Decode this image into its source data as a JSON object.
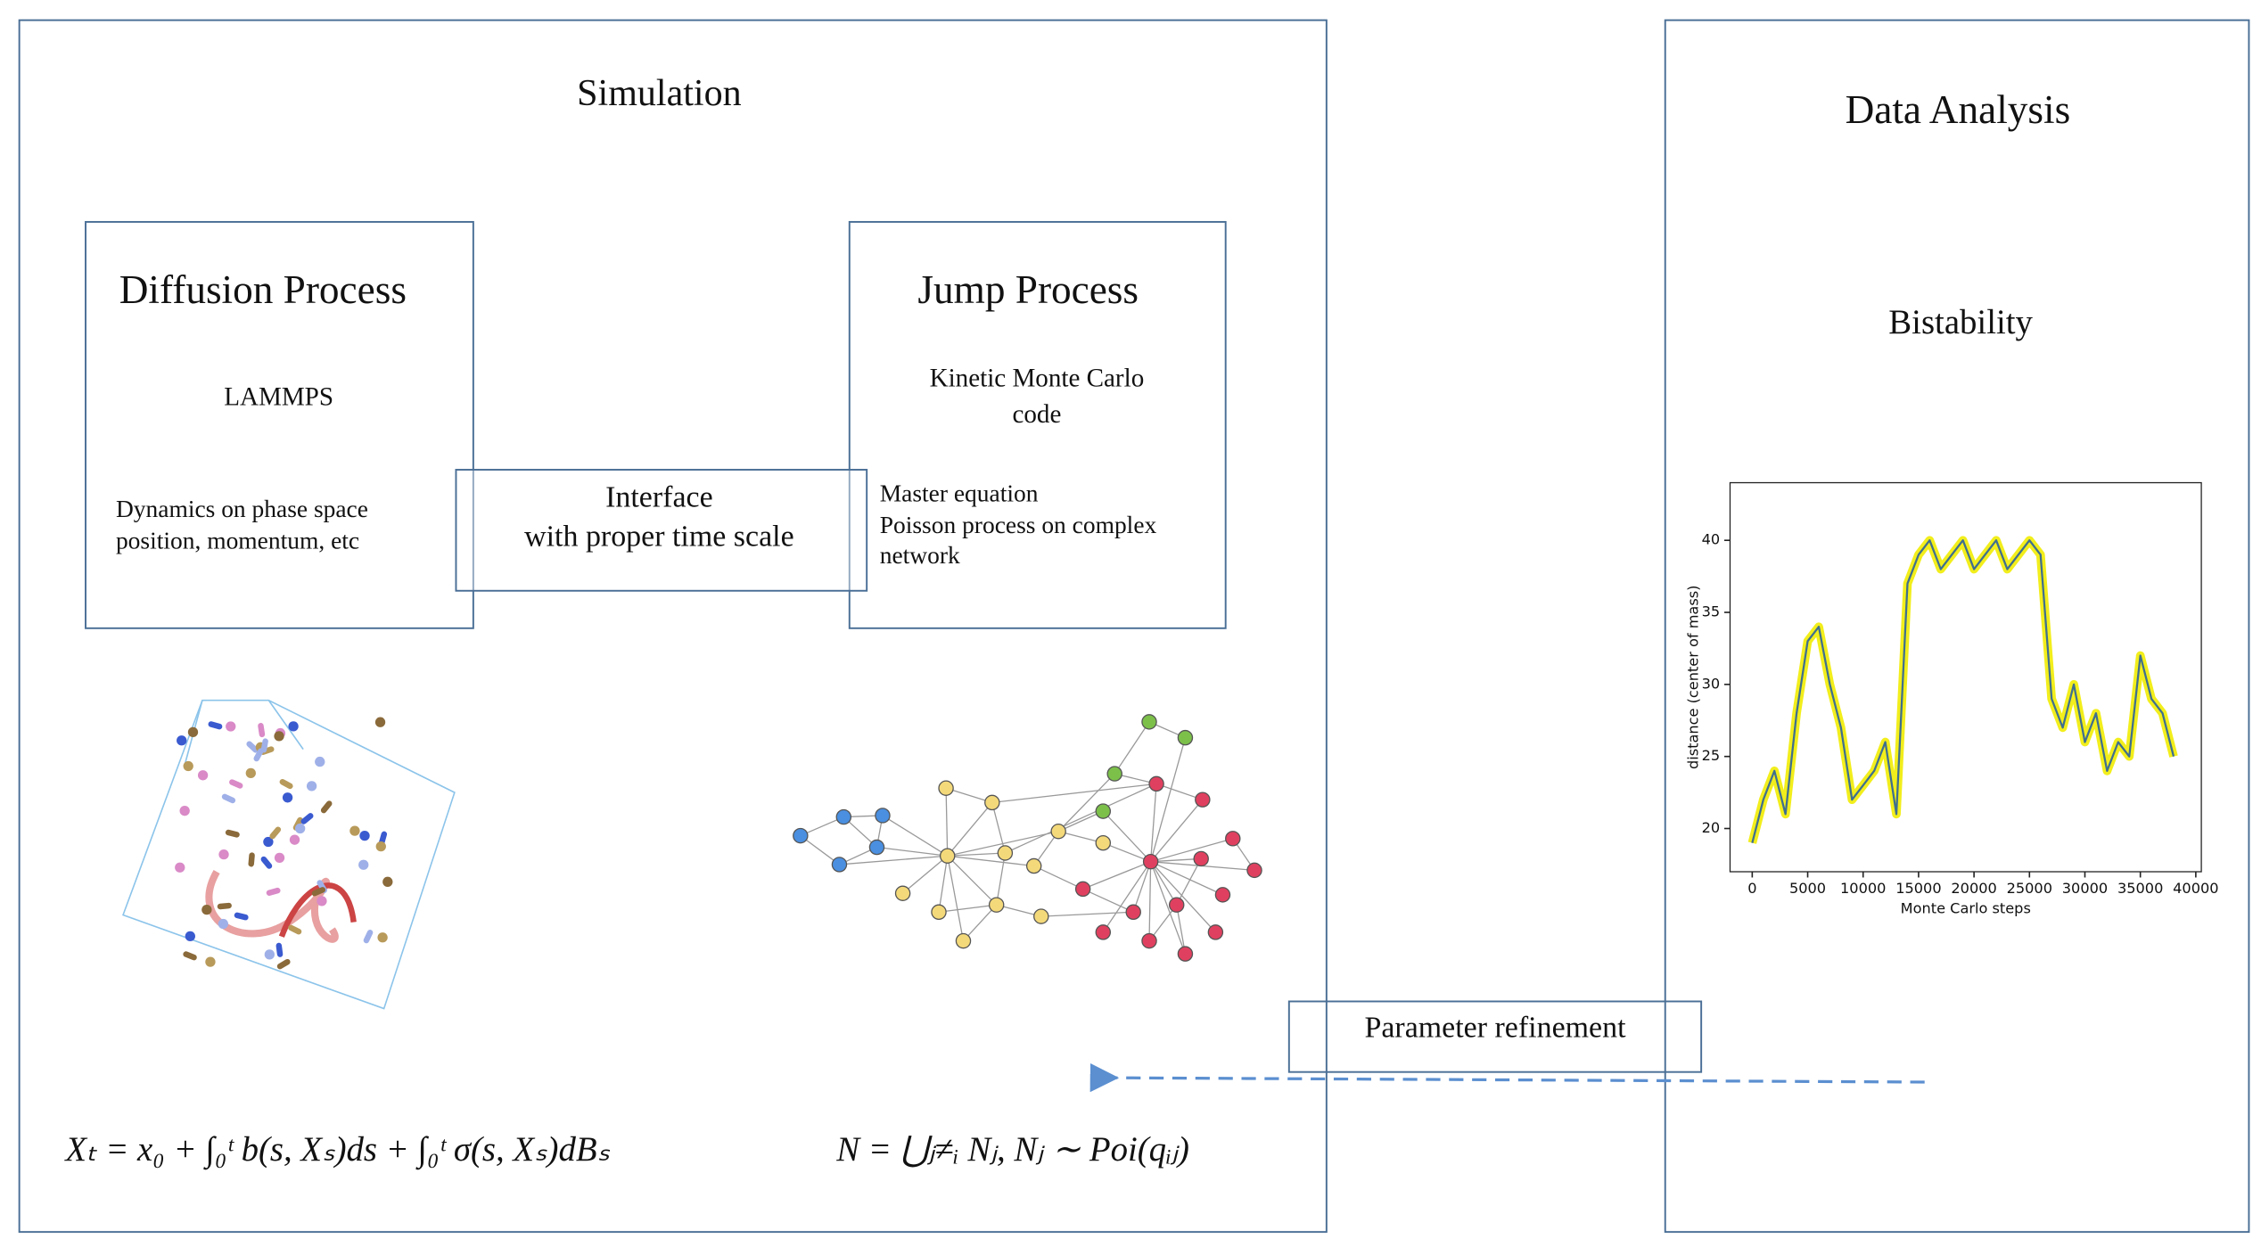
{
  "simulation": {
    "title": "Simulation",
    "diffusion": {
      "title": "Diffusion Process",
      "tool": "LAMMPS",
      "lines": [
        "Dynamics on phase space",
        "position, momentum, etc"
      ],
      "formula": "Xₜ = x₀ + ∫₀ᵗ b(s, Xₛ)ds + ∫₀ᵗ σ(s, Xₛ)dBₛ"
    },
    "interface": {
      "lines": [
        "Interface",
        "with proper time scale"
      ]
    },
    "jump": {
      "title": "Jump Process",
      "tool_lines": [
        "Kinetic Monte Carlo",
        "code"
      ],
      "lines": [
        "Master equation",
        "Poisson process on complex",
        "network"
      ],
      "formula": "N = ⋃ⱼ≠ᵢ Nⱼ,  Nⱼ ∼ Poi(qᵢⱼ)"
    }
  },
  "data_analysis": {
    "title": "Data Analysis",
    "subtitle": "Bistability",
    "plot": {
      "type": "line",
      "xlabel": "Monte Carlo steps",
      "ylabel": "distance (center of mass)",
      "x": [
        0,
        1000,
        2000,
        3000,
        4000,
        5000,
        6000,
        7000,
        8000,
        9000,
        10000,
        11000,
        12000,
        13000,
        14000,
        15000,
        16000,
        17000,
        18000,
        19000,
        20000,
        21000,
        22000,
        23000,
        24000,
        25000,
        26000,
        27000,
        28000,
        29000,
        30000,
        31000,
        32000,
        33000,
        34000,
        35000,
        36000,
        37000,
        38000
      ],
      "values": [
        19,
        22,
        24,
        21,
        28,
        33,
        34,
        30,
        27,
        22,
        23,
        24,
        26,
        21,
        37,
        39,
        40,
        38,
        39,
        40,
        38,
        39,
        40,
        38,
        39,
        40,
        39,
        29,
        27,
        30,
        26,
        28,
        24,
        26,
        25,
        32,
        29,
        28,
        25
      ],
      "color": "#3f6f8f",
      "band_color": "#f2ee1c",
      "xlim": [
        -2000,
        40500
      ],
      "ylim": [
        17,
        44
      ],
      "xticks": [
        0,
        5000,
        10000,
        15000,
        20000,
        25000,
        30000,
        35000,
        40000
      ],
      "yticks": [
        20,
        25,
        30,
        35,
        40
      ]
    }
  },
  "feedback": {
    "label": "Parameter refinement"
  }
}
